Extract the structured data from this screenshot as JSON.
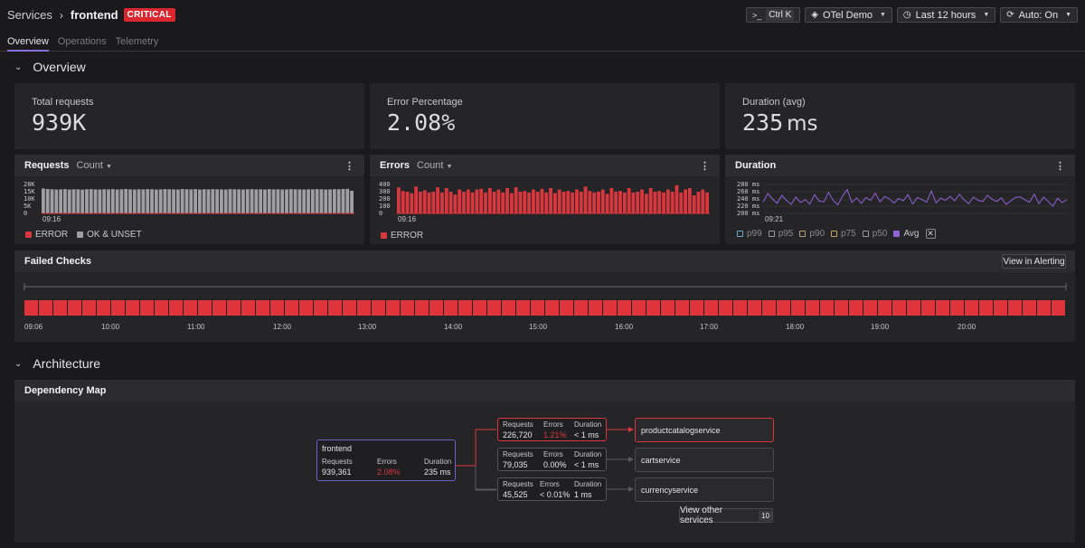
{
  "header": {
    "breadcrumb_root": "Services",
    "breadcrumb_current": "frontend",
    "status_badge": "CRITICAL",
    "shortcut_key": "Ctrl K",
    "environment": "OTel Demo",
    "time_range": "Last 12 hours",
    "auto_refresh": "Auto: On"
  },
  "tabs": [
    {
      "label": "Overview",
      "active": true
    },
    {
      "label": "Operations",
      "active": false
    },
    {
      "label": "Telemetry",
      "active": false
    }
  ],
  "overview": {
    "section_title": "Overview",
    "stats": [
      {
        "label": "Total requests",
        "value": "939K",
        "unit": ""
      },
      {
        "label": "Error Percentage",
        "value": "2.08%",
        "unit": ""
      },
      {
        "label": "Duration (avg)",
        "value": "235",
        "unit": "ms"
      }
    ],
    "requests_panel": {
      "title": "Requests",
      "aggregation": "Count",
      "legend": [
        "ERROR",
        "OK & UNSET"
      ],
      "time_label": "09:16"
    },
    "errors_panel": {
      "title": "Errors",
      "aggregation": "Count",
      "legend": [
        "ERROR"
      ],
      "time_label": "09:16"
    },
    "duration_panel": {
      "title": "Duration",
      "legend": [
        "p99",
        "p95",
        "p90",
        "p75",
        "p50",
        "Avg"
      ],
      "time_label": "09:21"
    },
    "failed_checks": {
      "title": "Failed Checks",
      "button": "View in Alerting"
    }
  },
  "architecture": {
    "section_title": "Architecture",
    "panel_title": "Dependency Map",
    "source": {
      "name": "frontend",
      "requests_label": "Requests",
      "errors_label": "Errors",
      "duration_label": "Duration",
      "requests": "939,361",
      "errors": "2.08%",
      "duration": "235 ms"
    },
    "edges": [
      {
        "requests": "226,720",
        "errors": "1.21%",
        "duration": "< 1 ms",
        "target": "productcatalogservice",
        "alert": true
      },
      {
        "requests": "79,035",
        "errors": "0.00%",
        "duration": "< 1 ms",
        "target": "cartservice",
        "alert": false
      },
      {
        "requests": "45,525",
        "errors": "< 0.01%",
        "duration": "1 ms",
        "target": "currencyservice",
        "alert": false
      }
    ],
    "edge_labels": {
      "requests": "Requests",
      "errors": "Errors",
      "duration": "Duration"
    },
    "view_other": "View other services",
    "view_other_count": "10"
  },
  "chart_data": [
    {
      "type": "bar",
      "title": "Requests",
      "yticks": [
        "28K",
        "15K",
        "10K",
        "5K",
        "0"
      ],
      "series": [
        {
          "name": "OK & UNSET",
          "values": [
            19800,
            19400,
            19200,
            19000,
            19100,
            19300,
            19000,
            19200,
            19100,
            18900,
            19200,
            19300,
            19100,
            19000,
            19200,
            19100,
            19300,
            19000,
            19200,
            19400,
            19100,
            19000,
            19200,
            19100,
            19300,
            19200,
            19000,
            19100,
            19300,
            19200,
            19100,
            19000,
            19400,
            19200,
            19100,
            19300,
            19000,
            19200,
            19100,
            19300,
            19200,
            19100,
            19000,
            19300,
            19200,
            19100,
            19000,
            19200,
            19300,
            19100,
            19200,
            19000,
            19300,
            19100,
            19200,
            19000,
            19100,
            19300,
            19200,
            19100,
            19000,
            19200,
            19100,
            19300,
            19200,
            19000,
            19100,
            19300,
            19200,
            19400,
            19500,
            18000
          ]
        }
      ]
    },
    {
      "type": "bar",
      "title": "Errors",
      "yticks": [
        "400",
        "300",
        "200",
        "100",
        "0"
      ],
      "series": [
        {
          "name": "ERROR",
          "values": [
            360,
            310,
            300,
            280,
            370,
            300,
            320,
            290,
            300,
            360,
            290,
            350,
            300,
            260,
            330,
            300,
            330,
            290,
            330,
            340,
            290,
            350,
            300,
            330,
            290,
            350,
            280,
            360,
            300,
            310,
            290,
            330,
            300,
            340,
            290,
            350,
            280,
            330,
            300,
            310,
            290,
            330,
            300,
            370,
            310,
            290,
            300,
            330,
            270,
            350,
            300,
            310,
            290,
            350,
            290,
            300,
            330,
            270,
            350,
            300,
            310,
            290,
            330,
            300,
            390,
            290,
            330,
            350,
            250,
            300,
            330,
            290
          ]
        }
      ]
    },
    {
      "type": "line",
      "title": "Duration",
      "yticks": [
        "280 ms",
        "260 ms",
        "240 ms",
        "220 ms",
        "200 ms"
      ],
      "series": [
        {
          "name": "Avg",
          "values": [
            232,
            255,
            240,
            228,
            250,
            236,
            225,
            245,
            230,
            238,
            226,
            252,
            234,
            232,
            258,
            236,
            224,
            248,
            266,
            230,
            243,
            228,
            244,
            236,
            256,
            232,
            247,
            240,
            229,
            241,
            235,
            252,
            226,
            244,
            238,
            231,
            262,
            229,
            242,
            236,
            247,
            235,
            253,
            237,
            227,
            245,
            236,
            233,
            250,
            239,
            233,
            243,
            225,
            235,
            244,
            246,
            237,
            231,
            253,
            227,
            245,
            233,
            220,
            242,
            230,
            238
          ]
        }
      ]
    }
  ],
  "failed_checks_axis": [
    "09:06",
    "10:00",
    "11:00",
    "12:00",
    "13:00",
    "14:00",
    "15:00",
    "16:00",
    "17:00",
    "18:00",
    "19:00",
    "20:00"
  ],
  "failed_checks_status": "failing"
}
